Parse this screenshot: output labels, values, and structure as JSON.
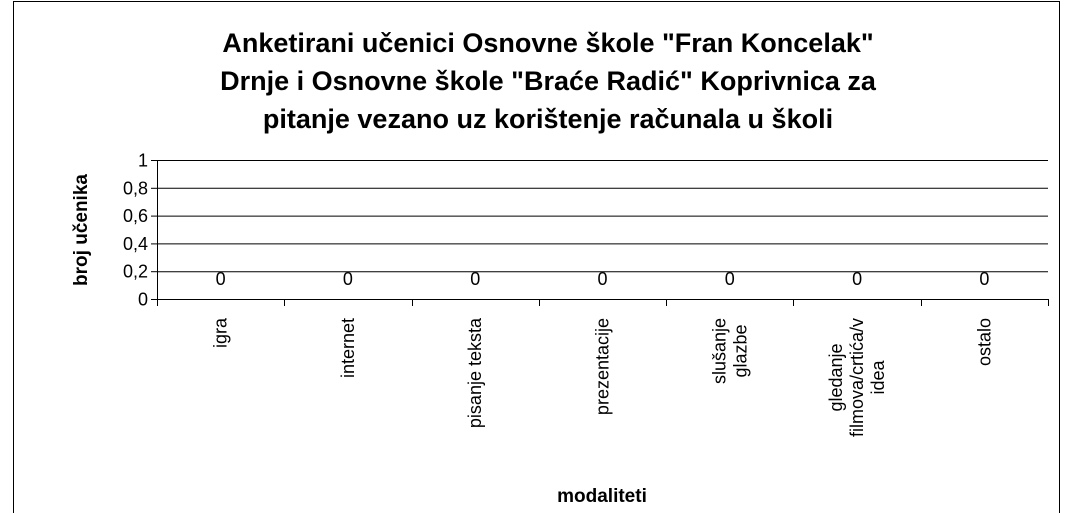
{
  "chart_data": {
    "type": "bar",
    "title": "Anketirani učenici Osnovne škole \"Fran Koncelak\"\nDrnje i Osnovne škole \"Braće Radić\" Koprivnica za\npitanje vezano uz korištenje računala u školi",
    "x_label": "modaliteti",
    "y_label": "broj učenika",
    "categories": [
      "igra",
      "internet",
      "pisanje teksta",
      "prezentacije",
      "slušanje\nglazbe",
      "gledanje\nfilmova/crtića/v\nidea",
      "ostalo"
    ],
    "values": [
      0,
      0,
      0,
      0,
      0,
      0,
      0
    ],
    "ylim": [
      0,
      1
    ],
    "yticks": [
      0,
      {
        "value": 0.2,
        "label": "0,2"
      },
      {
        "value": 0.4,
        "label": "0,4"
      },
      {
        "value": 0.6,
        "label": "0,6"
      },
      {
        "value": 0.8,
        "label": "0,8"
      },
      1
    ],
    "grid": true
  }
}
